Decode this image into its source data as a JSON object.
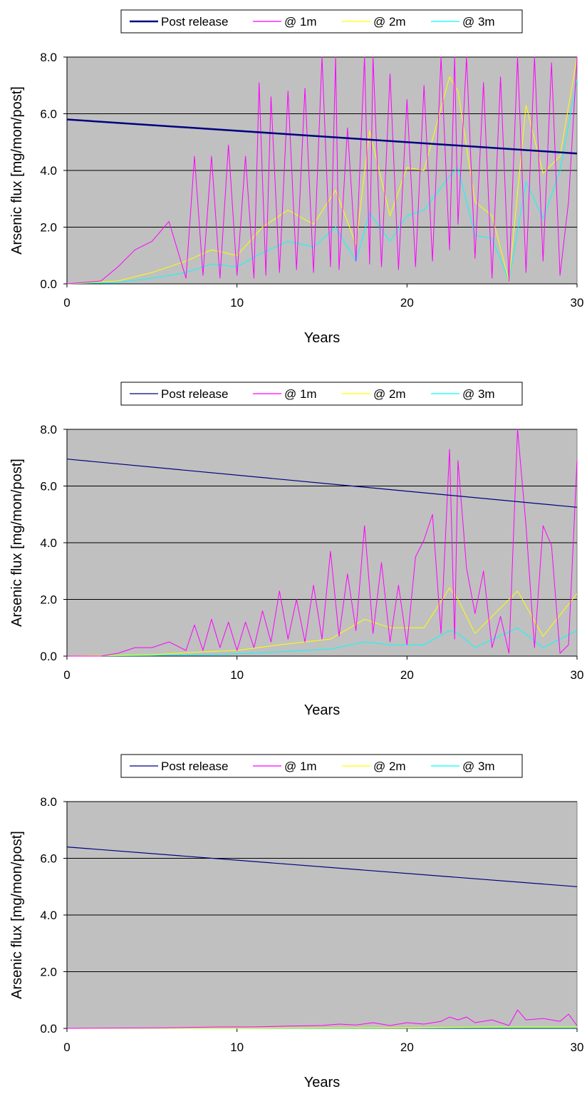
{
  "colors": {
    "plot_background": "#c0c0c0",
    "gridline": "#000000",
    "post_release": "#000080",
    "at_1m": "#ff00ff",
    "at_2m": "#ffff00",
    "at_3m": "#00ffff"
  },
  "chart_data": [
    {
      "type": "line",
      "title": "",
      "xlabel": "Years",
      "ylabel": "Arsenic flux [mg/mon/post]",
      "xlim": [
        0,
        30
      ],
      "ylim": [
        0,
        8
      ],
      "x_ticks": [
        "0",
        "10",
        "20",
        "30"
      ],
      "y_ticks": [
        "0.0",
        "2.0",
        "4.0",
        "6.0",
        "8.0"
      ],
      "grid": "horizontal",
      "legend": "top-center",
      "series": [
        {
          "name": "Post release",
          "color": "#000080",
          "x": [
            0,
            30
          ],
          "y": [
            5.8,
            4.6
          ]
        },
        {
          "name": "@ 1m",
          "color": "#ff00ff",
          "x": [
            0,
            2,
            3,
            4,
            5,
            6,
            7,
            7.5,
            8,
            8.5,
            9,
            9.5,
            10,
            10.5,
            11,
            11.3,
            11.7,
            12,
            12.5,
            13,
            13.5,
            14,
            14.5,
            15,
            15.5,
            15.8,
            16,
            16.5,
            17,
            17.5,
            17.8,
            18,
            18.5,
            19,
            19.5,
            20,
            20.5,
            21,
            21.5,
            22,
            22.5,
            22.8,
            23,
            23.5,
            24,
            24.5,
            25,
            25.5,
            26,
            26.5,
            27,
            27.5,
            28,
            28.5,
            29,
            29.5,
            30
          ],
          "y": [
            0,
            0.1,
            0.6,
            1.2,
            1.5,
            2.2,
            0.2,
            4.5,
            0.3,
            4.5,
            0.2,
            4.9,
            0.3,
            4.5,
            0.2,
            7.1,
            0.3,
            6.6,
            0.4,
            6.8,
            0.5,
            6.9,
            0.4,
            8,
            0.6,
            8,
            0.5,
            5.5,
            0.8,
            8,
            0.7,
            8,
            0.6,
            7.4,
            0.5,
            6.5,
            0.6,
            7,
            0.8,
            8,
            1.2,
            8,
            2.1,
            8,
            0.9,
            7.1,
            0.2,
            7.3,
            0.1,
            8,
            0.4,
            8,
            0.8,
            7.8,
            0.3,
            2.9,
            8
          ]
        },
        {
          "name": "@ 2m",
          "color": "#ffff00",
          "x": [
            0,
            3,
            5,
            7,
            8.5,
            10,
            11.5,
            13,
            14.5,
            15.8,
            17,
            17.8,
            19,
            20,
            21,
            22.5,
            23,
            24,
            25,
            26,
            27,
            28,
            29,
            30
          ],
          "y": [
            0,
            0.1,
            0.4,
            0.8,
            1.2,
            1.0,
            2.0,
            2.6,
            2.1,
            3.3,
            1.4,
            5.4,
            2.4,
            4.1,
            4.0,
            7.3,
            6.8,
            2.9,
            2.4,
            0.1,
            6.3,
            3.9,
            4.5,
            8
          ]
        },
        {
          "name": "@ 3m",
          "color": "#00ffff",
          "x": [
            0,
            3,
            5,
            7,
            8.5,
            10,
            11.5,
            13,
            14.5,
            15.8,
            17,
            17.8,
            19,
            20,
            21,
            22.5,
            23,
            24,
            25,
            26,
            27,
            28,
            29,
            30
          ],
          "y": [
            0,
            0.05,
            0.2,
            0.4,
            0.7,
            0.6,
            1.1,
            1.5,
            1.3,
            2.0,
            0.8,
            2.5,
            1.5,
            2.4,
            2.6,
            3.8,
            4.1,
            1.7,
            1.6,
            0.1,
            3.6,
            2.3,
            4.0,
            7.2
          ]
        }
      ]
    },
    {
      "type": "line",
      "title": "",
      "xlabel": "Years",
      "ylabel": "Arsenic flux [mg/mon/post]",
      "xlim": [
        0,
        30
      ],
      "ylim": [
        0,
        8
      ],
      "x_ticks": [
        "0",
        "10",
        "20",
        "30"
      ],
      "y_ticks": [
        "0.0",
        "2.0",
        "4.0",
        "6.0",
        "8.0"
      ],
      "grid": "horizontal",
      "legend": "top-center",
      "series": [
        {
          "name": "Post release",
          "color": "#000080",
          "x": [
            0,
            30
          ],
          "y": [
            6.95,
            5.25
          ]
        },
        {
          "name": "@ 1m",
          "color": "#ff00ff",
          "x": [
            0,
            2,
            3,
            4,
            5,
            6,
            7,
            7.5,
            8,
            8.5,
            9,
            9.5,
            10,
            10.5,
            11,
            11.5,
            12,
            12.5,
            13,
            13.5,
            14,
            14.5,
            15,
            15.5,
            16,
            16.5,
            17,
            17.5,
            17.8,
            18,
            18.5,
            19,
            19.5,
            20,
            20.5,
            21,
            21.5,
            22,
            22.5,
            22.8,
            23,
            23.5,
            24,
            24.5,
            25,
            25.5,
            26,
            26.5,
            27,
            27.5,
            28,
            28.5,
            29,
            29.5,
            30
          ],
          "y": [
            0,
            0,
            0.1,
            0.3,
            0.3,
            0.5,
            0.2,
            1.1,
            0.2,
            1.3,
            0.3,
            1.2,
            0.2,
            1.2,
            0.3,
            1.6,
            0.5,
            2.3,
            0.6,
            2.0,
            0.5,
            2.5,
            0.6,
            3.7,
            0.7,
            2.9,
            0.9,
            4.6,
            2.4,
            0.8,
            3.3,
            0.5,
            2.5,
            0.4,
            3.5,
            4.1,
            5.0,
            0.8,
            7.3,
            0.6,
            6.9,
            3.1,
            1.5,
            3.0,
            0.3,
            1.4,
            0.1,
            8.0,
            4.6,
            0.3,
            4.6,
            3.9,
            0.1,
            0.4,
            6.9
          ]
        },
        {
          "name": "@ 2m",
          "color": "#ffff00",
          "x": [
            0,
            5,
            8,
            10,
            12.5,
            15.5,
            17.5,
            19,
            21,
            22.5,
            23,
            24,
            26.5,
            28,
            30
          ],
          "y": [
            0,
            0.05,
            0.15,
            0.2,
            0.4,
            0.6,
            1.3,
            1.0,
            1.0,
            2.4,
            2.0,
            0.8,
            2.3,
            0.7,
            2.2
          ]
        },
        {
          "name": "@ 3m",
          "color": "#00ffff",
          "x": [
            0,
            5,
            8,
            10,
            12.5,
            15.5,
            17.5,
            19,
            21,
            22.5,
            23,
            24,
            26.5,
            28,
            30
          ],
          "y": [
            0,
            0.02,
            0.05,
            0.08,
            0.15,
            0.25,
            0.5,
            0.4,
            0.4,
            0.9,
            0.8,
            0.3,
            1.0,
            0.3,
            0.9
          ]
        }
      ]
    },
    {
      "type": "line",
      "title": "",
      "xlabel": "Years",
      "ylabel": "Arsenic flux [mg/mon/post]",
      "xlim": [
        0,
        30
      ],
      "ylim": [
        0,
        8
      ],
      "x_ticks": [
        "0",
        "10",
        "20",
        "30"
      ],
      "y_ticks": [
        "0.0",
        "2.0",
        "4.0",
        "6.0",
        "8.0"
      ],
      "grid": "horizontal",
      "legend": "top-center",
      "series": [
        {
          "name": "Post release",
          "color": "#000080",
          "x": [
            0,
            30
          ],
          "y": [
            6.4,
            5.0
          ]
        },
        {
          "name": "@ 1m",
          "color": "#ff00ff",
          "x": [
            0,
            5.5,
            7,
            9,
            11,
            13,
            15,
            16,
            17,
            18,
            19,
            20,
            21,
            22,
            22.5,
            23,
            23.5,
            24,
            25,
            26,
            26.5,
            27,
            28,
            29,
            29.5,
            30
          ],
          "y": [
            0,
            0.02,
            0.03,
            0.05,
            0.05,
            0.08,
            0.1,
            0.15,
            0.12,
            0.2,
            0.1,
            0.2,
            0.15,
            0.25,
            0.4,
            0.3,
            0.4,
            0.2,
            0.3,
            0.1,
            0.65,
            0.3,
            0.35,
            0.25,
            0.5,
            0.1
          ]
        },
        {
          "name": "@ 2m",
          "color": "#ffff00",
          "x": [
            0,
            10,
            20,
            25,
            30
          ],
          "y": [
            0,
            0.01,
            0.02,
            0.05,
            0.05
          ]
        },
        {
          "name": "@ 3m",
          "color": "#00ffff",
          "x": [
            0,
            10,
            20,
            25,
            30
          ],
          "y": [
            0,
            0.0,
            0.01,
            0.02,
            0.02
          ]
        }
      ]
    }
  ]
}
